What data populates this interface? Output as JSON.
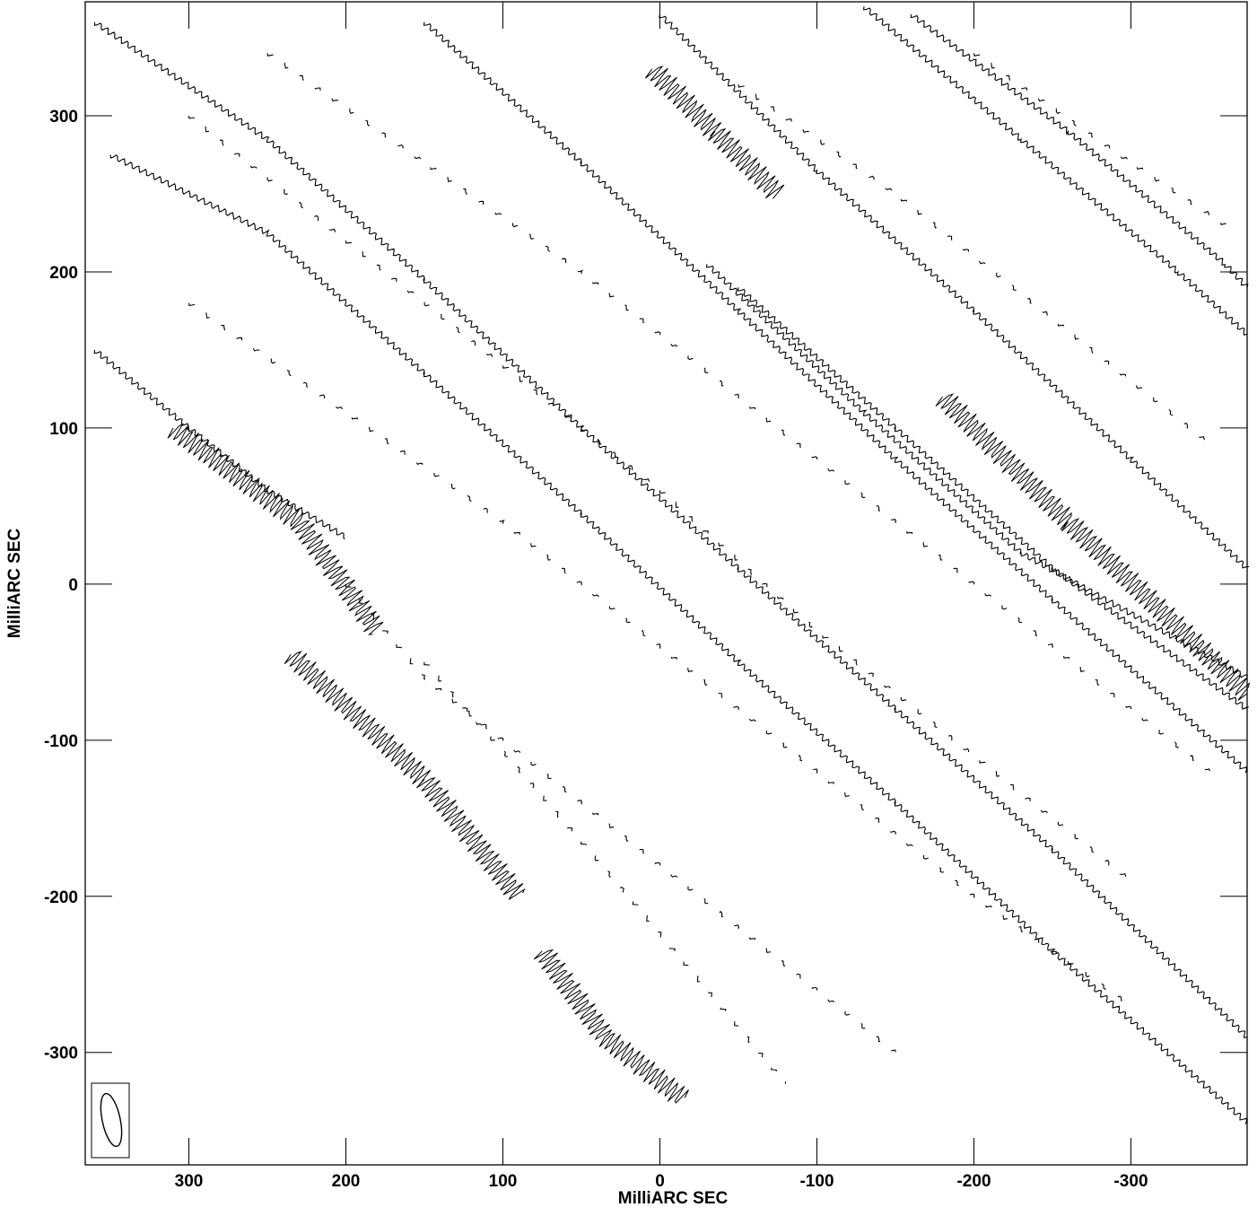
{
  "chart_data": {
    "type": "contour",
    "xlabel": "MilliARC SEC",
    "ylabel": "MilliARC SEC",
    "xlim": [
      366,
      -374
    ],
    "ylim": [
      -372,
      373
    ],
    "x_ticks": [
      300,
      200,
      100,
      0,
      -100,
      -200,
      -300
    ],
    "y_ticks": [
      300,
      200,
      100,
      0,
      -100,
      -200,
      -300
    ],
    "grid": false,
    "contours": [
      {
        "style": "solid",
        "points": [
          [
            350,
            275
          ],
          [
            250,
            225
          ],
          [
            150,
            135
          ],
          [
            50,
            45
          ],
          [
            -50,
            -50
          ],
          [
            -150,
            -140
          ],
          [
            -250,
            -235
          ],
          [
            -374,
            -345
          ]
        ]
      },
      {
        "style": "solid",
        "points": [
          [
            360,
            360
          ],
          [
            250,
            285
          ],
          [
            150,
            195
          ],
          [
            50,
            100
          ],
          [
            -50,
            10
          ],
          [
            -150,
            -80
          ],
          [
            -250,
            -170
          ],
          [
            -374,
            -290
          ]
        ]
      },
      {
        "style": "solid",
        "points": [
          [
            150,
            360
          ],
          [
            50,
            270
          ],
          [
            -50,
            175
          ],
          [
            -150,
            80
          ],
          [
            -250,
            -10
          ],
          [
            -374,
            -120
          ]
        ]
      },
      {
        "style": "solid",
        "points": [
          [
            0,
            365
          ],
          [
            -100,
            265
          ],
          [
            -200,
            175
          ],
          [
            -300,
            80
          ],
          [
            -374,
            10
          ]
        ]
      },
      {
        "style": "solid",
        "points": [
          [
            -130,
            370
          ],
          [
            -230,
            285
          ],
          [
            -330,
            200
          ],
          [
            -374,
            160
          ]
        ]
      },
      {
        "style": "solid",
        "points": [
          [
            -160,
            365
          ],
          [
            -260,
            290
          ],
          [
            -360,
            205
          ],
          [
            -374,
            190
          ]
        ]
      },
      {
        "style": "solid",
        "points": [
          [
            360,
            150
          ],
          [
            300,
            100
          ],
          [
            250,
            60
          ],
          [
            200,
            30
          ]
        ]
      },
      {
        "style": "solid",
        "points": [
          [
            -50,
            190
          ],
          [
            -150,
            100
          ],
          [
            -250,
            10
          ],
          [
            -374,
            -80
          ]
        ]
      },
      {
        "style": "solid",
        "points": [
          [
            -30,
            205
          ],
          [
            -130,
            110
          ],
          [
            -230,
            20
          ],
          [
            -374,
            -60
          ]
        ]
      }
    ],
    "filled_lobes": [
      {
        "points": [
          [
            310,
            100
          ],
          [
            230,
            40
          ],
          [
            180,
            -30
          ]
        ]
      },
      {
        "points": [
          [
            235,
            -45
          ],
          [
            150,
            -125
          ],
          [
            90,
            -200
          ]
        ]
      },
      {
        "points": [
          [
            75,
            -235
          ],
          [
            35,
            -290
          ],
          [
            -15,
            -330
          ]
        ]
      },
      {
        "points": [
          [
            5,
            330
          ],
          [
            -35,
            290
          ],
          [
            -75,
            250
          ]
        ]
      },
      {
        "points": [
          [
            -180,
            120
          ],
          [
            -260,
            40
          ],
          [
            -374,
            -70
          ]
        ]
      }
    ],
    "dashed_contours": [
      {
        "points": [
          [
            300,
            300
          ],
          [
            200,
            220
          ],
          [
            100,
            140
          ],
          [
            0,
            60
          ],
          [
            -100,
            -30
          ],
          [
            -200,
            -110
          ],
          [
            -300,
            -190
          ]
        ]
      },
      {
        "points": [
          [
            250,
            340
          ],
          [
            150,
            270
          ],
          [
            50,
            200
          ],
          [
            -50,
            120
          ],
          [
            -150,
            40
          ],
          [
            -250,
            -40
          ],
          [
            -350,
            -120
          ]
        ]
      },
      {
        "points": [
          [
            300,
            180
          ],
          [
            200,
            110
          ],
          [
            100,
            40
          ],
          [
            0,
            -40
          ],
          [
            -100,
            -120
          ],
          [
            -200,
            -200
          ],
          [
            -300,
            -270
          ]
        ]
      },
      {
        "points": [
          [
            200,
            0
          ],
          [
            150,
            -60
          ],
          [
            50,
            -140
          ],
          [
            -50,
            -220
          ],
          [
            -150,
            -300
          ]
        ]
      },
      {
        "points": [
          [
            150,
            -50
          ],
          [
            80,
            -130
          ],
          [
            20,
            -200
          ],
          [
            -30,
            -260
          ],
          [
            -80,
            -320
          ]
        ]
      },
      {
        "points": [
          [
            -50,
            320
          ],
          [
            -150,
            250
          ],
          [
            -250,
            170
          ],
          [
            -350,
            90
          ]
        ]
      },
      {
        "points": [
          [
            -200,
            340
          ],
          [
            -300,
            270
          ],
          [
            -360,
            230
          ]
        ]
      }
    ],
    "beam": {
      "shape": "ellipse",
      "position": "bottom-left"
    }
  }
}
